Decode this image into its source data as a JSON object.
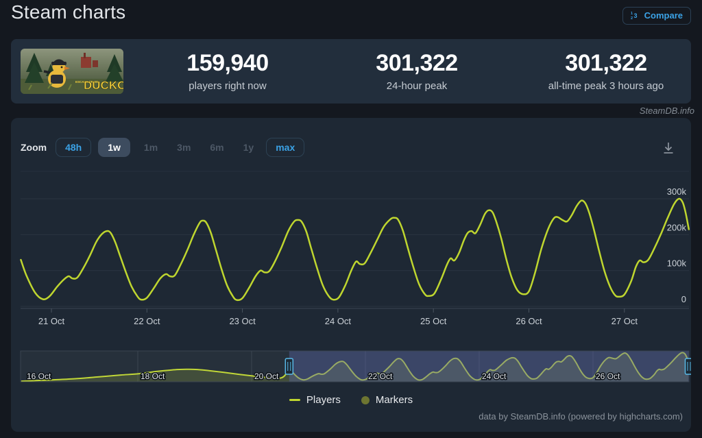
{
  "header": {
    "title": "Steam charts",
    "compare_label": "Compare"
  },
  "stats": {
    "thumbnail": {
      "prefix": "ESCAPE FROM",
      "name": "DUCKOV"
    },
    "items": [
      {
        "value": "159,940",
        "label": "players right now"
      },
      {
        "value": "301,322",
        "label": "24-hour peak"
      },
      {
        "value": "301,322",
        "label": "all-time peak 3 hours ago"
      }
    ]
  },
  "watermark": "SteamDB.info",
  "toolbar": {
    "zoom_label": "Zoom",
    "buttons": [
      {
        "label": "48h",
        "state": "enabled"
      },
      {
        "label": "1w",
        "state": "selected"
      },
      {
        "label": "1m",
        "state": "disabled"
      },
      {
        "label": "3m",
        "state": "disabled"
      },
      {
        "label": "6m",
        "state": "disabled"
      },
      {
        "label": "1y",
        "state": "disabled"
      },
      {
        "label": "max",
        "state": "enabled"
      }
    ]
  },
  "legend": [
    {
      "label": "Players",
      "color": "#bfd62f",
      "type": "line"
    },
    {
      "label": "Markers",
      "color": "#6d7531",
      "type": "circle"
    }
  ],
  "footer": "data by SteamDB.info (powered by highcharts.com)",
  "colors": {
    "accent_blue": "#3ba2e6",
    "line": "#bfd62f",
    "navigator_mask": "rgba(100,112,175,0.42)",
    "handle_border": "#58b9e8",
    "panel_bg": "#1e2834",
    "card_bg": "#222e3c",
    "page_bg": "#14181f"
  },
  "chart_data": {
    "type": "line",
    "title": "",
    "xlabel": "",
    "ylabel": "",
    "x_unit": "days since 21 Oct 00:00",
    "xlim_days": [
      -0.323,
      6.675
    ],
    "ylim": [
      0,
      367000
    ],
    "grid": "horizontal-only",
    "yticks": [
      {
        "value": 0,
        "label": "0"
      },
      {
        "value": 100000,
        "label": "100k"
      },
      {
        "value": 200000,
        "label": "200k"
      },
      {
        "value": 300000,
        "label": "300k"
      }
    ],
    "xticks": [
      {
        "day": 0,
        "label": "21 Oct"
      },
      {
        "day": 1,
        "label": "22 Oct"
      },
      {
        "day": 2,
        "label": "23 Oct"
      },
      {
        "day": 3,
        "label": "24 Oct"
      },
      {
        "day": 4,
        "label": "25 Oct"
      },
      {
        "day": 5,
        "label": "26 Oct"
      },
      {
        "day": 6,
        "label": "27 Oct"
      }
    ],
    "series": [
      {
        "name": "Players",
        "color": "#bfd62f",
        "daily_peaks": [
          210000,
          239000,
          241000,
          247000,
          268000,
          295000,
          301322
        ],
        "points": [
          [
            -0.32,
            130000
          ],
          [
            -0.26,
            85000
          ],
          [
            -0.17,
            38000
          ],
          [
            -0.09,
            20000
          ],
          [
            -0.02,
            28000
          ],
          [
            0.06,
            55000
          ],
          [
            0.13,
            75000
          ],
          [
            0.18,
            84000
          ],
          [
            0.22,
            78000
          ],
          [
            0.27,
            80000
          ],
          [
            0.33,
            105000
          ],
          [
            0.4,
            140000
          ],
          [
            0.47,
            180000
          ],
          [
            0.53,
            202000
          ],
          [
            0.58,
            210000
          ],
          [
            0.62,
            205000
          ],
          [
            0.67,
            178000
          ],
          [
            0.72,
            140000
          ],
          [
            0.78,
            95000
          ],
          [
            0.84,
            55000
          ],
          [
            0.9,
            28000
          ],
          [
            0.94,
            19000
          ],
          [
            1.0,
            24000
          ],
          [
            1.07,
            50000
          ],
          [
            1.14,
            78000
          ],
          [
            1.2,
            90000
          ],
          [
            1.24,
            84000
          ],
          [
            1.29,
            86000
          ],
          [
            1.35,
            115000
          ],
          [
            1.42,
            155000
          ],
          [
            1.49,
            200000
          ],
          [
            1.55,
            232000
          ],
          [
            1.58,
            239000
          ],
          [
            1.62,
            234000
          ],
          [
            1.67,
            205000
          ],
          [
            1.72,
            160000
          ],
          [
            1.78,
            105000
          ],
          [
            1.84,
            58000
          ],
          [
            1.9,
            28000
          ],
          [
            1.94,
            18000
          ],
          [
            2.0,
            23000
          ],
          [
            2.07,
            52000
          ],
          [
            2.14,
            85000
          ],
          [
            2.19,
            100000
          ],
          [
            2.23,
            95000
          ],
          [
            2.28,
            98000
          ],
          [
            2.34,
            125000
          ],
          [
            2.41,
            165000
          ],
          [
            2.48,
            210000
          ],
          [
            2.54,
            236000
          ],
          [
            2.58,
            241000
          ],
          [
            2.62,
            236000
          ],
          [
            2.67,
            208000
          ],
          [
            2.72,
            162000
          ],
          [
            2.78,
            108000
          ],
          [
            2.84,
            60000
          ],
          [
            2.9,
            30000
          ],
          [
            2.95,
            19000
          ],
          [
            3.01,
            25000
          ],
          [
            3.08,
            60000
          ],
          [
            3.14,
            100000
          ],
          [
            3.19,
            125000
          ],
          [
            3.23,
            118000
          ],
          [
            3.28,
            120000
          ],
          [
            3.34,
            148000
          ],
          [
            3.41,
            185000
          ],
          [
            3.48,
            222000
          ],
          [
            3.55,
            243000
          ],
          [
            3.59,
            247000
          ],
          [
            3.63,
            242000
          ],
          [
            3.68,
            212000
          ],
          [
            3.73,
            165000
          ],
          [
            3.79,
            110000
          ],
          [
            3.85,
            62000
          ],
          [
            3.91,
            34000
          ],
          [
            3.95,
            29000
          ],
          [
            4.01,
            36000
          ],
          [
            4.08,
            75000
          ],
          [
            4.14,
            115000
          ],
          [
            4.18,
            134000
          ],
          [
            4.22,
            128000
          ],
          [
            4.27,
            150000
          ],
          [
            4.32,
            185000
          ],
          [
            4.36,
            205000
          ],
          [
            4.4,
            210000
          ],
          [
            4.44,
            204000
          ],
          [
            4.49,
            228000
          ],
          [
            4.54,
            258000
          ],
          [
            4.58,
            268000
          ],
          [
            4.62,
            262000
          ],
          [
            4.66,
            235000
          ],
          [
            4.71,
            190000
          ],
          [
            4.76,
            135000
          ],
          [
            4.82,
            80000
          ],
          [
            4.88,
            45000
          ],
          [
            4.94,
            34000
          ],
          [
            5.0,
            42000
          ],
          [
            5.06,
            90000
          ],
          [
            5.13,
            160000
          ],
          [
            5.2,
            215000
          ],
          [
            5.26,
            245000
          ],
          [
            5.3,
            249000
          ],
          [
            5.35,
            241000
          ],
          [
            5.4,
            237000
          ],
          [
            5.45,
            255000
          ],
          [
            5.5,
            280000
          ],
          [
            5.55,
            295000
          ],
          [
            5.59,
            288000
          ],
          [
            5.63,
            262000
          ],
          [
            5.68,
            215000
          ],
          [
            5.73,
            160000
          ],
          [
            5.79,
            100000
          ],
          [
            5.85,
            55000
          ],
          [
            5.9,
            32000
          ],
          [
            5.94,
            27000
          ],
          [
            6.0,
            33000
          ],
          [
            6.07,
            70000
          ],
          [
            6.12,
            110000
          ],
          [
            6.16,
            128000
          ],
          [
            6.2,
            123000
          ],
          [
            6.25,
            130000
          ],
          [
            6.31,
            160000
          ],
          [
            6.38,
            200000
          ],
          [
            6.45,
            245000
          ],
          [
            6.52,
            285000
          ],
          [
            6.57,
            300000
          ],
          [
            6.61,
            290000
          ],
          [
            6.64,
            262000
          ],
          [
            6.675,
            215000
          ]
        ]
      }
    ],
    "navigator": {
      "xlim_days": [
        -5.06,
        6.69
      ],
      "selected_range_days": [
        -0.34,
        6.69
      ],
      "xticks": [
        {
          "day": -5,
          "label": "16 Oct",
          "gridline": false
        },
        {
          "day": -3,
          "label": "18 Oct",
          "gridline": true
        },
        {
          "day": -1,
          "label": "20 Oct",
          "gridline": true
        },
        {
          "day": 1,
          "label": "22 Oct",
          "gridline": true
        },
        {
          "day": 3,
          "label": "24 Oct",
          "gridline": true
        },
        {
          "day": 5,
          "label": "26 Oct",
          "gridline": true
        }
      ],
      "pre_points": [
        [
          -5.05,
          6000
        ],
        [
          -4.8,
          12000
        ],
        [
          -4.5,
          20000
        ],
        [
          -4.1,
          32000
        ],
        [
          -3.7,
          50000
        ],
        [
          -3.3,
          70000
        ],
        [
          -3.0,
          82000
        ],
        [
          -2.7,
          105000
        ],
        [
          -2.4,
          122000
        ],
        [
          -2.15,
          128000
        ],
        [
          -1.95,
          126000
        ],
        [
          -1.75,
          115000
        ],
        [
          -1.5,
          98000
        ],
        [
          -1.2,
          75000
        ],
        [
          -0.95,
          58000
        ],
        [
          -0.75,
          45000
        ],
        [
          -0.58,
          38000
        ],
        [
          -0.48,
          40000
        ],
        [
          -0.42,
          62000
        ],
        [
          -0.37,
          110000
        ],
        [
          -0.34,
          155000
        ]
      ]
    }
  }
}
